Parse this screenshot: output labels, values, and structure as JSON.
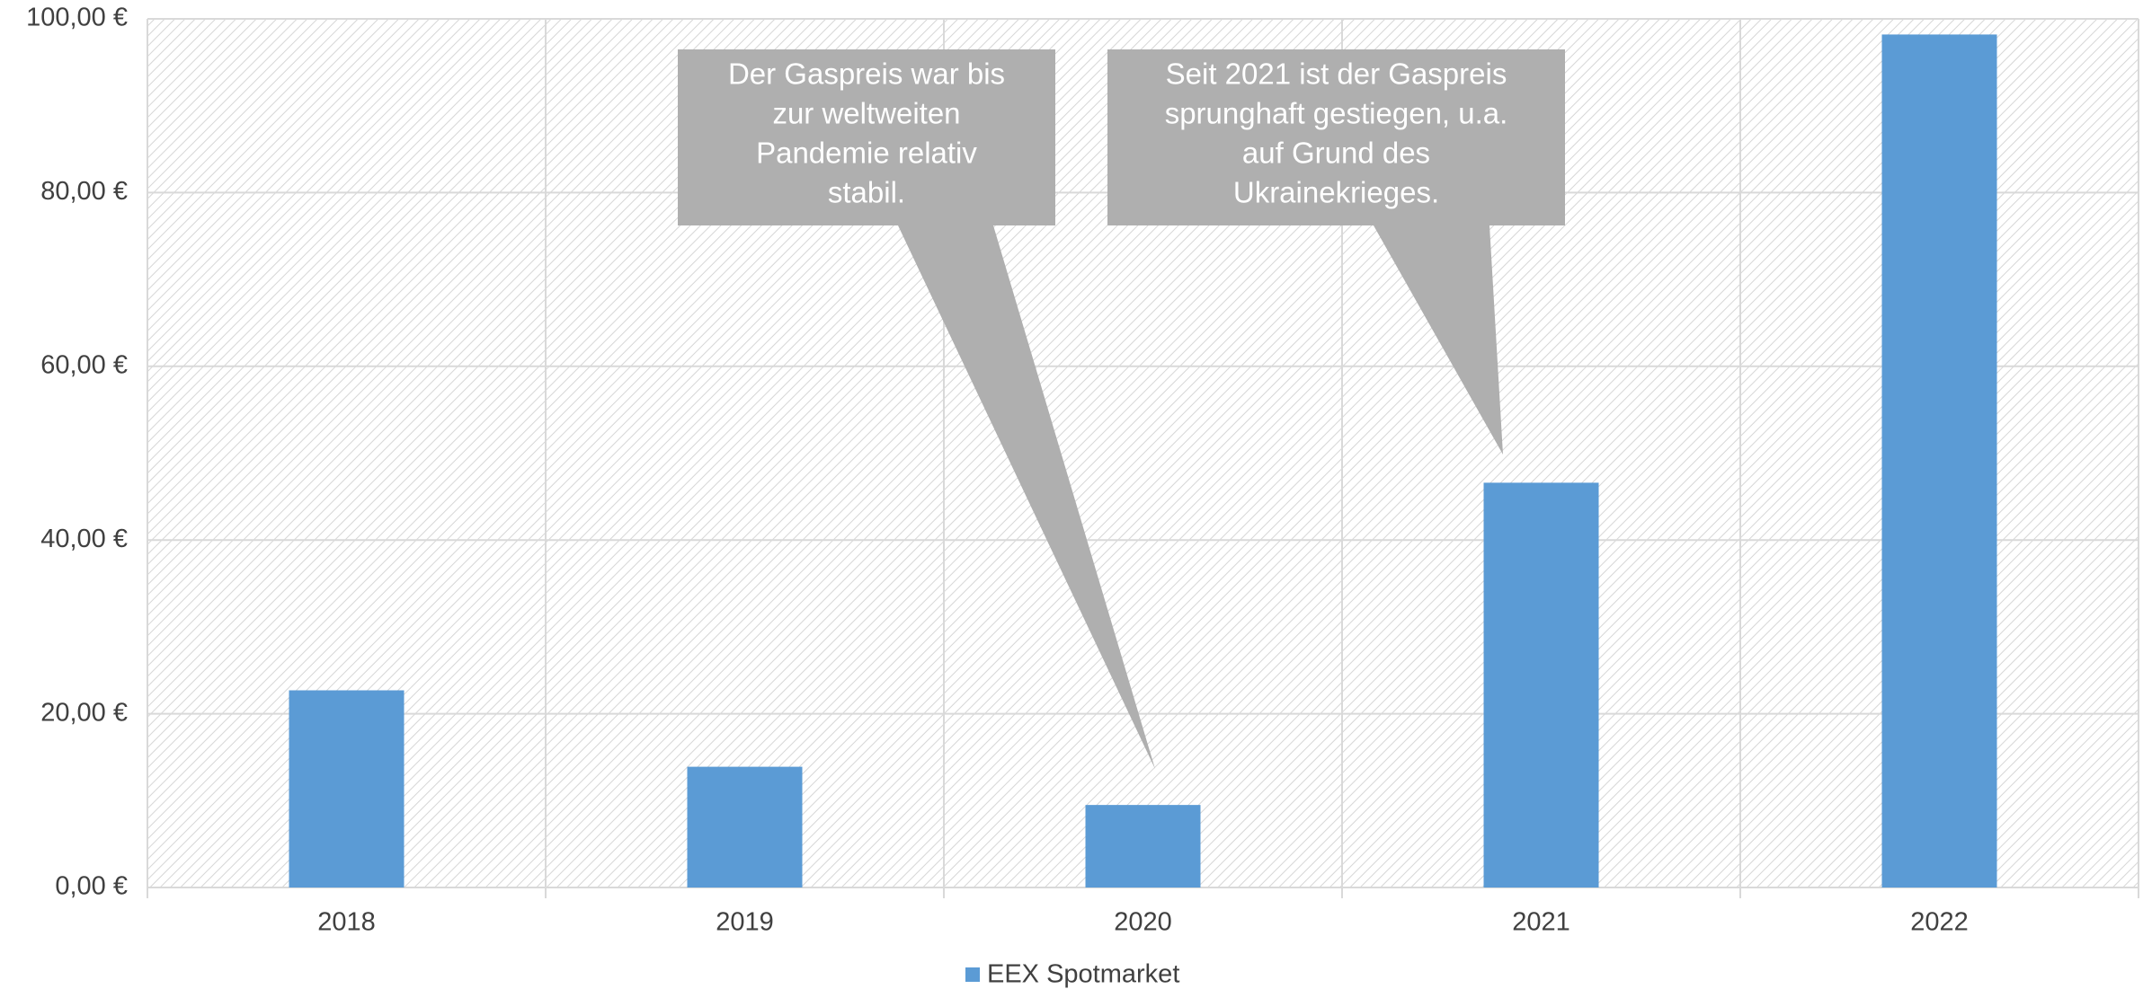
{
  "chart_data": {
    "type": "bar",
    "categories": [
      "2018",
      "2019",
      "2020",
      "2021",
      "2022"
    ],
    "series": [
      {
        "name": "EEX Spotmarket",
        "color": "#5b9bd5",
        "values": [
          22.7,
          13.9,
          9.5,
          46.6,
          98.2
        ]
      }
    ],
    "ylim": [
      0,
      100
    ],
    "yticks": [
      {
        "value": 0,
        "label": "0,00 €"
      },
      {
        "value": 20,
        "label": "20,00 €"
      },
      {
        "value": 40,
        "label": "40,00 €"
      },
      {
        "value": 60,
        "label": "60,00 €"
      },
      {
        "value": 80,
        "label": "80,00 €"
      },
      {
        "value": 100,
        "label": "100,00 €"
      }
    ],
    "grid": true,
    "legend": "bottom",
    "annotations": [
      {
        "lines": [
          "Der Gaspreis war bis",
          "zur weltweiten",
          "Pandemie relativ",
          "stabil."
        ]
      },
      {
        "lines": [
          "Seit 2021 ist der Gaspreis",
          "sprunghaft gestiegen, u.a.",
          "auf Grund des",
          "Ukrainekrieges."
        ]
      }
    ]
  }
}
